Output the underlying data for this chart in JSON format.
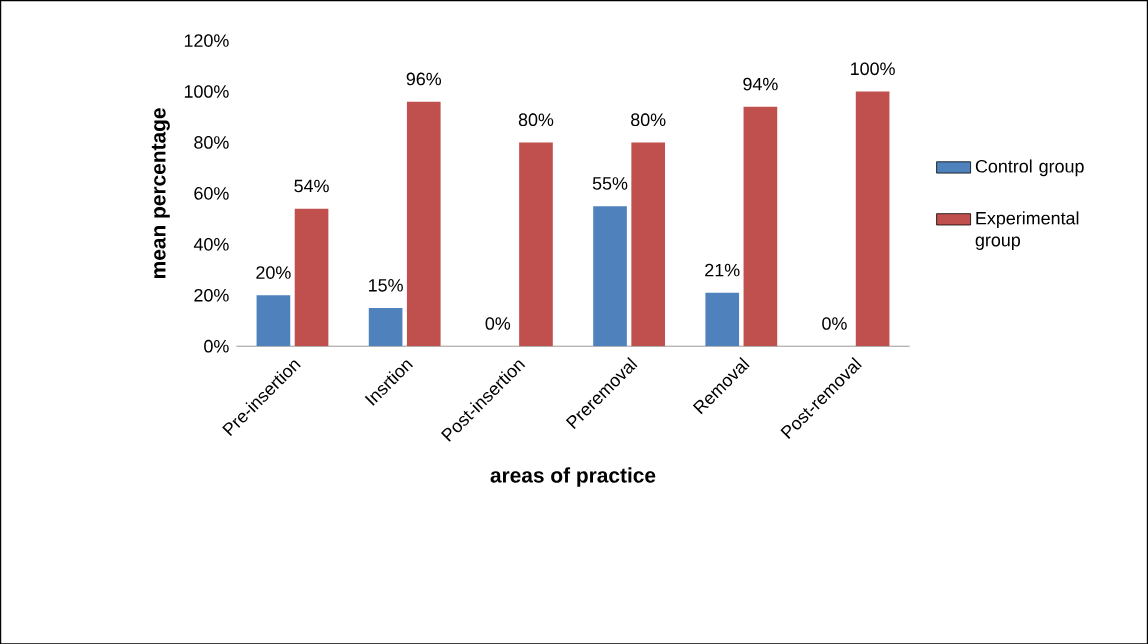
{
  "chart_data": {
    "type": "bar",
    "xlabel": "areas of practice",
    "ylabel": "mean percentage",
    "categories": [
      "Pre-insertion",
      "Insrtion",
      "Post-insertion",
      "Preremoval",
      "Removal",
      "Post-removal"
    ],
    "series": [
      {
        "name": "Control group",
        "color": "#4f81bd",
        "values": [
          20,
          15,
          0,
          55,
          21,
          0
        ],
        "value_labels": [
          "20%",
          "15%",
          "0%",
          "55%",
          "21%",
          "0%"
        ]
      },
      {
        "name": "Experimental group",
        "color": "#c0504d",
        "values": [
          54,
          96,
          80,
          80,
          94,
          100
        ],
        "value_labels": [
          "54%",
          "96%",
          "80%",
          "80%",
          "94%",
          "100%"
        ]
      }
    ],
    "ylim": [
      0,
      120
    ],
    "yticks": [
      {
        "value": 0,
        "label": "0%"
      },
      {
        "value": 20,
        "label": "20%"
      },
      {
        "value": 40,
        "label": "40%"
      },
      {
        "value": 60,
        "label": "60%"
      },
      {
        "value": 80,
        "label": "80%"
      },
      {
        "value": 100,
        "label": "100%"
      },
      {
        "value": 120,
        "label": "120%"
      }
    ],
    "legend": "right",
    "grid": false
  }
}
